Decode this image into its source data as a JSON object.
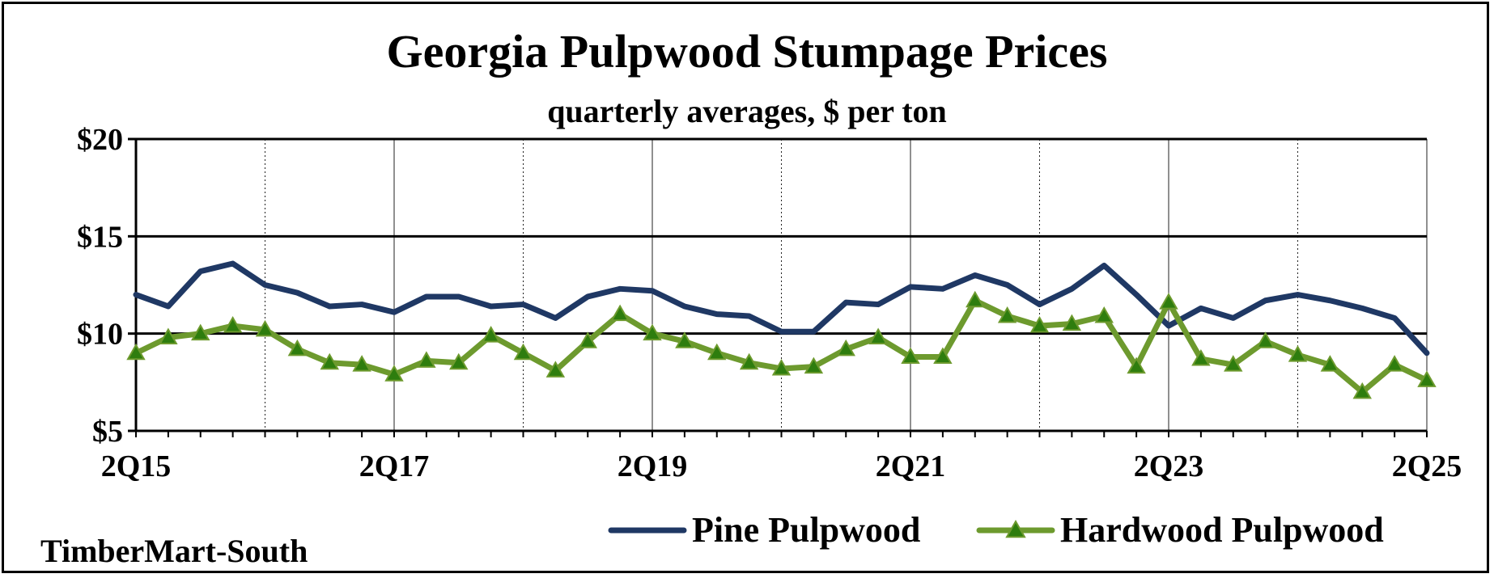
{
  "chart_data": {
    "type": "line",
    "title": "Georgia Pulpwood Stumpage Prices",
    "subtitle": "quarterly averages, $ per ton",
    "source": "TimberMart-South",
    "ylim": [
      5,
      20
    ],
    "y_ticks": [
      "$5",
      "$10",
      "$15",
      "$20"
    ],
    "y_tick_values": [
      5,
      10,
      15,
      20
    ],
    "x_tick_labels": [
      "2Q15",
      "2Q17",
      "2Q19",
      "2Q21",
      "2Q23",
      "2Q25"
    ],
    "x_tick_indices": [
      0,
      8,
      16,
      24,
      32,
      40
    ],
    "gridlines": "horizontal major solid, vertical dotted yearly",
    "legend_position": "bottom-right",
    "colors": {
      "pine": "#1f3864",
      "hardwood": "#6d9a2e",
      "marker_fill": "#2e7d0e"
    },
    "series": [
      {
        "name": "Pine Pulpwood",
        "values": [
          12.0,
          11.4,
          13.2,
          13.6,
          12.5,
          12.1,
          11.4,
          11.5,
          11.1,
          11.9,
          11.9,
          11.4,
          11.5,
          10.8,
          11.9,
          12.3,
          12.2,
          11.4,
          11.0,
          10.9,
          10.1,
          10.1,
          11.6,
          11.5,
          12.4,
          12.3,
          13.0,
          12.5,
          11.5,
          12.3,
          13.5,
          12.0,
          10.4,
          11.3,
          10.8,
          11.7,
          12.0,
          11.7,
          11.3,
          10.8,
          9.0
        ]
      },
      {
        "name": "Hardwood Pulpwood",
        "values": [
          9.0,
          9.8,
          10.0,
          10.4,
          10.2,
          9.2,
          8.5,
          8.4,
          7.9,
          8.6,
          8.5,
          9.9,
          9.0,
          8.1,
          9.6,
          11.0,
          10.0,
          9.6,
          9.0,
          8.5,
          8.2,
          8.3,
          9.2,
          9.8,
          8.8,
          8.8,
          11.7,
          10.9,
          10.4,
          10.5,
          10.9,
          8.3,
          11.6,
          8.7,
          8.4,
          9.6,
          8.9,
          8.4,
          7.0,
          8.4,
          7.6
        ]
      }
    ]
  }
}
